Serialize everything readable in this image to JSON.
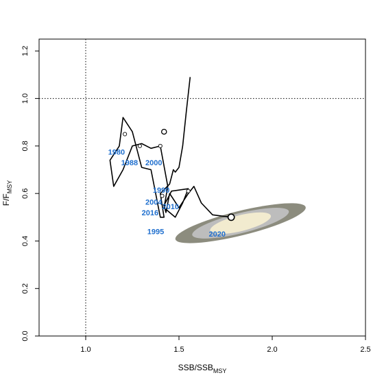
{
  "chart_data": {
    "type": "line",
    "xlabel": "SSB/SSB",
    "xlabel_sub": "MSY",
    "ylabel": "F/F",
    "ylabel_sub": "MSY",
    "xlim": [
      0.75,
      2.5
    ],
    "ylim": [
      0.0,
      1.25
    ],
    "x_ticks": [
      1.0,
      1.5,
      2.0,
      2.5
    ],
    "y_ticks": [
      0.0,
      0.2,
      0.4,
      0.6,
      0.8,
      1.0,
      1.2
    ],
    "x_tick_labels": [
      "1.0",
      "1.5",
      "2.0",
      "2.5"
    ],
    "y_tick_labels": [
      "0.0",
      "0.2",
      "0.4",
      "0.6",
      "0.8",
      "1.0",
      "1.2"
    ],
    "reference_lines": {
      "x": 1.0,
      "y": 1.0
    },
    "grid": false,
    "colors": {
      "ellipse_outer": "#8c8c7e",
      "ellipse_middle": "#bdbdbd",
      "ellipse_inner": "#f2ebcf",
      "trajectory": "#000000",
      "year_labels": "#1f6fce"
    },
    "confidence_region": {
      "center": [
        1.83,
        0.475
      ],
      "outer": {
        "rx": 0.58,
        "ry": 0.055,
        "angle_deg": -33
      },
      "middle": {
        "rx": 0.43,
        "ry": 0.04,
        "angle_deg": -33
      },
      "inner": {
        "rx": 0.27,
        "ry": 0.026,
        "angle_deg": -33
      }
    },
    "trajectory": {
      "x": [
        1.56,
        1.54,
        1.52,
        1.5,
        1.48,
        1.47,
        1.45,
        1.4,
        1.42,
        1.4,
        1.35,
        1.3,
        1.25,
        1.2,
        1.18,
        1.13,
        1.15,
        1.2,
        1.25,
        1.3,
        1.35,
        1.4,
        1.44,
        1.42,
        1.45,
        1.48,
        1.52,
        1.55,
        1.46,
        1.44,
        1.42,
        1.43,
        1.45,
        1.5,
        1.55,
        1.58,
        1.62,
        1.68,
        1.78
      ],
      "y": [
        1.09,
        0.95,
        0.8,
        0.71,
        0.69,
        0.7,
        0.64,
        0.6,
        0.5,
        0.5,
        0.7,
        0.71,
        0.86,
        0.92,
        0.8,
        0.74,
        0.63,
        0.7,
        0.8,
        0.81,
        0.79,
        0.8,
        0.63,
        0.54,
        0.52,
        0.5,
        0.56,
        0.62,
        0.61,
        0.58,
        0.55,
        0.52,
        0.6,
        0.54,
        0.6,
        0.63,
        0.56,
        0.51,
        0.5
      ]
    },
    "open_points": {
      "x": [
        1.21,
        1.29,
        1.4,
        1.55,
        1.41
      ],
      "y": [
        0.85,
        0.8,
        0.8,
        0.61,
        0.59
      ]
    },
    "start_point": {
      "x": 1.42,
      "y": 0.86
    },
    "end_point": {
      "x": 1.78,
      "y": 0.5
    },
    "year_labels": [
      {
        "text": "1980",
        "x": 1.12,
        "y": 0.775
      },
      {
        "text": "1988",
        "x": 1.19,
        "y": 0.73
      },
      {
        "text": "2000",
        "x": 1.32,
        "y": 0.73
      },
      {
        "text": "1990",
        "x": 1.36,
        "y": 0.615
      },
      {
        "text": "2004",
        "x": 1.32,
        "y": 0.565
      },
      {
        "text": "2010",
        "x": 1.41,
        "y": 0.545
      },
      {
        "text": "2016",
        "x": 1.3,
        "y": 0.52
      },
      {
        "text": "1995",
        "x": 1.33,
        "y": 0.44
      },
      {
        "text": "2020",
        "x": 1.66,
        "y": 0.43
      }
    ]
  }
}
